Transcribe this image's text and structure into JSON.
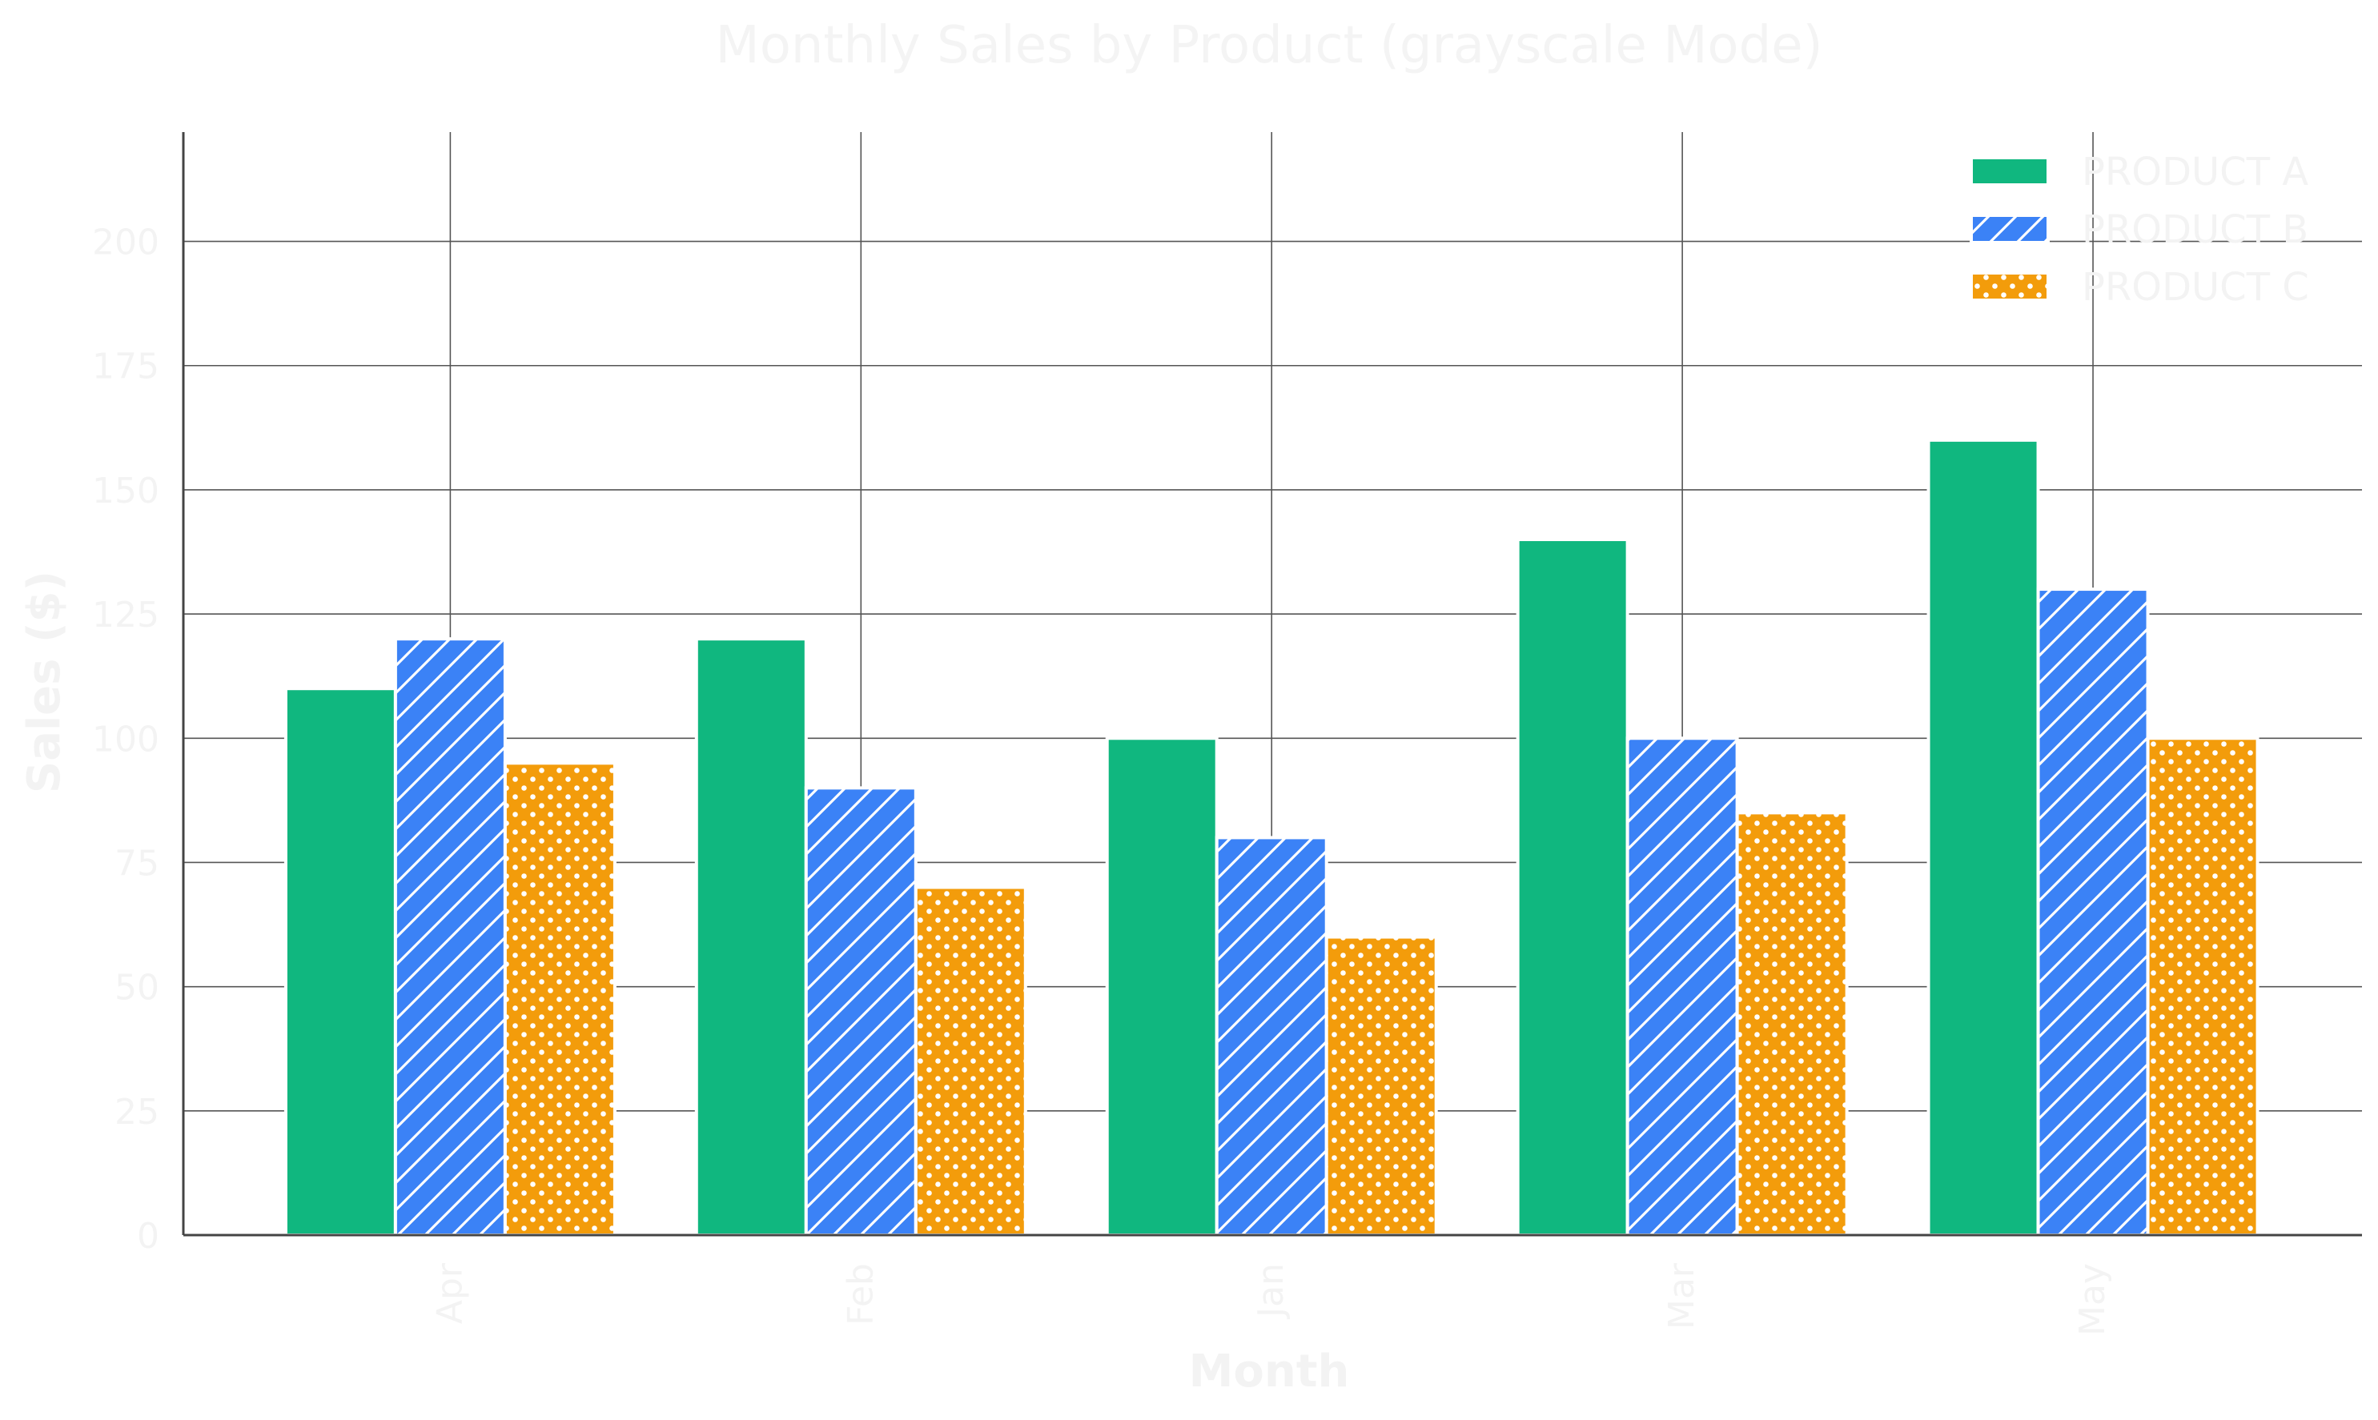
{
  "chart_data": {
    "type": "bar",
    "title": "Monthly Sales by Product (grayscale Mode)",
    "xlabel": "Month",
    "ylabel": "Sales ($)",
    "categories": [
      "Apr",
      "Feb",
      "Jan",
      "Mar",
      "May"
    ],
    "series": [
      {
        "name": "PRODUCT A",
        "values": [
          110,
          120,
          100,
          140,
          160
        ],
        "color": "#10b77f",
        "pattern": "solid"
      },
      {
        "name": "PRODUCT B",
        "values": [
          120,
          90,
          80,
          100,
          130
        ],
        "color": "#3b82f6",
        "pattern": "diagonal-hatch"
      },
      {
        "name": "PRODUCT C",
        "values": [
          95,
          70,
          60,
          85,
          100
        ],
        "color": "#f39c0b",
        "pattern": "dots"
      }
    ],
    "ylim": [
      0,
      222
    ],
    "yticks": [
      0,
      25,
      50,
      75,
      100,
      125,
      150,
      175,
      200
    ],
    "grid": true,
    "legend_position": "top-right"
  }
}
